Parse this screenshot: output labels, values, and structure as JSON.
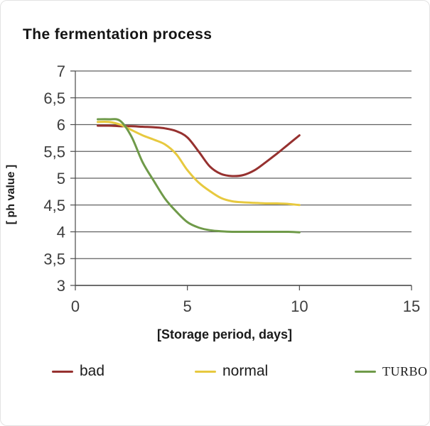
{
  "title": "The fermentation process",
  "chart_data": {
    "type": "line",
    "title": "The fermentation process",
    "xlabel": "[Storage period, days]",
    "ylabel": "[ ph value ]",
    "xlim": [
      0,
      15
    ],
    "ylim": [
      3,
      7
    ],
    "grid": "horizontal",
    "legend_position": "bottom",
    "xticks": [
      {
        "value": 0,
        "label": "0"
      },
      {
        "value": 5,
        "label": "5"
      },
      {
        "value": 10,
        "label": "10"
      },
      {
        "value": 15,
        "label": "15"
      }
    ],
    "yticks": [
      {
        "value": 3,
        "label": "3"
      },
      {
        "value": 3.5,
        "label": "3,5"
      },
      {
        "value": 4,
        "label": "4"
      },
      {
        "value": 4.5,
        "label": "4,5"
      },
      {
        "value": 5,
        "label": "5"
      },
      {
        "value": 5.5,
        "label": "5,5"
      },
      {
        "value": 6,
        "label": "6"
      },
      {
        "value": 6.5,
        "label": "6,5"
      },
      {
        "value": 7,
        "label": "7"
      }
    ],
    "series": [
      {
        "name": "bad",
        "color": "#96312f",
        "points": [
          [
            1,
            5.98
          ],
          [
            1.5,
            5.98
          ],
          [
            2,
            5.97
          ],
          [
            2.5,
            5.97
          ],
          [
            3,
            5.96
          ],
          [
            3.5,
            5.95
          ],
          [
            4,
            5.93
          ],
          [
            4.5,
            5.88
          ],
          [
            5,
            5.76
          ],
          [
            5.5,
            5.5
          ],
          [
            6,
            5.22
          ],
          [
            6.5,
            5.08
          ],
          [
            7,
            5.04
          ],
          [
            7.5,
            5.06
          ],
          [
            8,
            5.15
          ],
          [
            8.5,
            5.3
          ],
          [
            9,
            5.46
          ],
          [
            9.5,
            5.63
          ],
          [
            10,
            5.8
          ]
        ]
      },
      {
        "name": "normal",
        "color": "#e7c93f",
        "points": [
          [
            1,
            6.05
          ],
          [
            1.5,
            6.05
          ],
          [
            2,
            6.0
          ],
          [
            2.5,
            5.9
          ],
          [
            3,
            5.8
          ],
          [
            3.5,
            5.72
          ],
          [
            4,
            5.63
          ],
          [
            4.5,
            5.45
          ],
          [
            5,
            5.15
          ],
          [
            5.5,
            4.92
          ],
          [
            6,
            4.76
          ],
          [
            6.5,
            4.63
          ],
          [
            7,
            4.57
          ],
          [
            7.5,
            4.55
          ],
          [
            8,
            4.54
          ],
          [
            8.5,
            4.53
          ],
          [
            9,
            4.53
          ],
          [
            9.5,
            4.52
          ],
          [
            10,
            4.5
          ]
        ]
      },
      {
        "name": "TURBO",
        "color": "#6f9a49",
        "points": [
          [
            1,
            6.1
          ],
          [
            1.5,
            6.1
          ],
          [
            2,
            6.07
          ],
          [
            2.5,
            5.78
          ],
          [
            3,
            5.3
          ],
          [
            3.5,
            4.95
          ],
          [
            4,
            4.62
          ],
          [
            4.5,
            4.38
          ],
          [
            5,
            4.18
          ],
          [
            5.5,
            4.08
          ],
          [
            6,
            4.03
          ],
          [
            6.5,
            4.01
          ],
          [
            7,
            4.0
          ],
          [
            7.5,
            4.0
          ],
          [
            8,
            4.0
          ],
          [
            8.5,
            4.0
          ],
          [
            9,
            4.0
          ],
          [
            9.5,
            4.0
          ],
          [
            10,
            3.99
          ]
        ]
      }
    ],
    "colors": {
      "grid": "#606060",
      "axis": "#4a4a4a",
      "tick_text": "#3d3d3d"
    }
  }
}
